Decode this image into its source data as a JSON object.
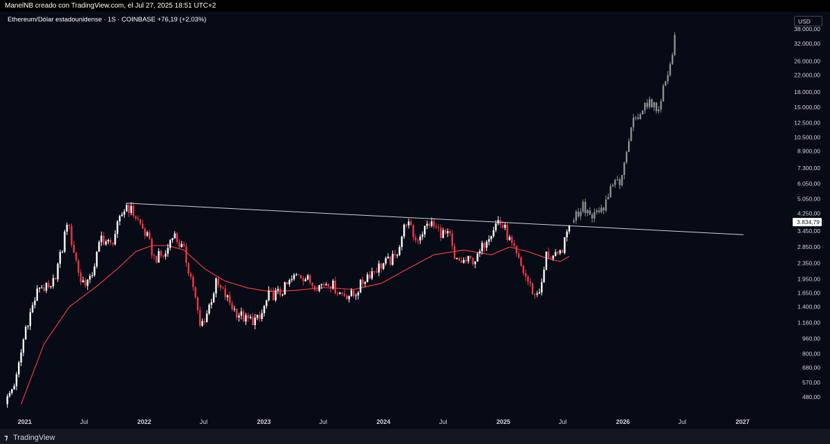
{
  "header": {
    "credit": "ManelNB creado con TradingView.com, el Jul 27, 2025 18:51 UTC+2"
  },
  "legend": {
    "symbol": "Ethereum/Dólar estadounidense · 1S · COINBASE",
    "change": "+76,19 (+2,03%)"
  },
  "price_scale": {
    "currency": "USD",
    "current_price_label": "3.834,79"
  },
  "footer": {
    "brand": "TradingView"
  },
  "colors": {
    "background": "#060b15",
    "up": "#ffffff",
    "down": "#f23645",
    "moving_average": "#f23645",
    "trendline": "#d1d4dc",
    "projection": "#8f8f8f"
  },
  "chart_data": {
    "type": "candlestick",
    "y_scale": "log",
    "y_range": [
      400,
      42000
    ],
    "x_range": [
      "2020-10-26",
      "2027-05-17"
    ],
    "y_ticks": [
      {
        "value": 38000,
        "label": "38.000,00"
      },
      {
        "value": 32000,
        "label": "32.000,00"
      },
      {
        "value": 26000,
        "label": "26.000,00"
      },
      {
        "value": 22000,
        "label": "22.000,00"
      },
      {
        "value": 18000,
        "label": "18.000,00"
      },
      {
        "value": 15000,
        "label": "15.000,00"
      },
      {
        "value": 12500,
        "label": "12.500,00"
      },
      {
        "value": 10500,
        "label": "10.500,00"
      },
      {
        "value": 8900,
        "label": "8.900,00"
      },
      {
        "value": 7300,
        "label": "7.300,00"
      },
      {
        "value": 6050,
        "label": "6.050,00"
      },
      {
        "value": 5050,
        "label": "5.050,00"
      },
      {
        "value": 4250,
        "label": "4.250,00"
      },
      {
        "value": 3450,
        "label": "3.450,00"
      },
      {
        "value": 2850,
        "label": "2.850,00"
      },
      {
        "value": 2350,
        "label": "2.350,00"
      },
      {
        "value": 1950,
        "label": "1.950,00"
      },
      {
        "value": 1650,
        "label": "1.650,00"
      },
      {
        "value": 1400,
        "label": "1.400,00"
      },
      {
        "value": 1160,
        "label": "1.160,00"
      },
      {
        "value": 960,
        "label": "960,00"
      },
      {
        "value": 800,
        "label": "800,00"
      },
      {
        "value": 680,
        "label": "680,00"
      },
      {
        "value": 570,
        "label": "570,00"
      },
      {
        "value": 480,
        "label": "480,00"
      }
    ],
    "x_ticks": [
      {
        "date": "2021-01-01",
        "label": "2021",
        "major": true
      },
      {
        "date": "2021-07-01",
        "label": "Jul",
        "major": false
      },
      {
        "date": "2022-01-01",
        "label": "2022",
        "major": true
      },
      {
        "date": "2022-07-01",
        "label": "Jul",
        "major": false
      },
      {
        "date": "2023-01-01",
        "label": "2023",
        "major": true
      },
      {
        "date": "2023-07-01",
        "label": "Jul",
        "major": false
      },
      {
        "date": "2024-01-01",
        "label": "2024",
        "major": true
      },
      {
        "date": "2024-07-01",
        "label": "Jul",
        "major": false
      },
      {
        "date": "2025-01-01",
        "label": "2025",
        "major": true
      },
      {
        "date": "2025-07-01",
        "label": "Jul",
        "major": false
      },
      {
        "date": "2026-01-01",
        "label": "2026",
        "major": true
      },
      {
        "date": "2026-07-01",
        "label": "Jul",
        "major": false
      },
      {
        "date": "2027-01-01",
        "label": "2027",
        "major": true
      }
    ],
    "price_path": [
      [
        "2020-11-02",
        440
      ],
      [
        "2020-12-07",
        600
      ],
      [
        "2021-01-04",
        1100
      ],
      [
        "2021-02-15",
        1800
      ],
      [
        "2021-03-22",
        1700
      ],
      [
        "2021-04-26",
        2800
      ],
      [
        "2021-05-10",
        3900
      ],
      [
        "2021-06-21",
        1900
      ],
      [
        "2021-07-19",
        1900
      ],
      [
        "2021-08-23",
        3200
      ],
      [
        "2021-09-20",
        2900
      ],
      [
        "2021-10-25",
        4200
      ],
      [
        "2021-11-08",
        4700
      ],
      [
        "2021-12-06",
        4100
      ],
      [
        "2022-01-10",
        3200
      ],
      [
        "2022-01-31",
        2500
      ],
      [
        "2022-03-07",
        2600
      ],
      [
        "2022-03-28",
        3400
      ],
      [
        "2022-05-02",
        2700
      ],
      [
        "2022-05-30",
        1800
      ],
      [
        "2022-06-20",
        1100
      ],
      [
        "2022-07-11",
        1300
      ],
      [
        "2022-08-08",
        1850
      ],
      [
        "2022-09-05",
        1600
      ],
      [
        "2022-10-03",
        1350
      ],
      [
        "2022-11-07",
        1200
      ],
      [
        "2022-12-19",
        1200
      ],
      [
        "2023-01-16",
        1600
      ],
      [
        "2023-02-20",
        1650
      ],
      [
        "2023-04-17",
        2100
      ],
      [
        "2023-05-29",
        1850
      ],
      [
        "2023-06-19",
        1800
      ],
      [
        "2023-07-17",
        1900
      ],
      [
        "2023-08-21",
        1650
      ],
      [
        "2023-10-02",
        1600
      ],
      [
        "2023-11-13",
        2050
      ],
      [
        "2023-12-25",
        2300
      ],
      [
        "2024-02-05",
        2500
      ],
      [
        "2024-03-11",
        3900
      ],
      [
        "2024-04-08",
        3100
      ],
      [
        "2024-05-20",
        3800
      ],
      [
        "2024-06-24",
        3400
      ],
      [
        "2024-07-22",
        3200
      ],
      [
        "2024-08-05",
        2400
      ],
      [
        "2024-09-09",
        2400
      ],
      [
        "2024-10-14",
        2500
      ],
      [
        "2024-11-11",
        3200
      ],
      [
        "2024-12-16",
        3900
      ],
      [
        "2025-01-06",
        3500
      ],
      [
        "2025-02-03",
        2700
      ],
      [
        "2025-03-10",
        2000
      ],
      [
        "2025-04-07",
        1600
      ],
      [
        "2025-04-28",
        1800
      ],
      [
        "2025-05-12",
        2600
      ],
      [
        "2025-06-16",
        2500
      ],
      [
        "2025-07-07",
        3000
      ],
      [
        "2025-07-21",
        3834.79
      ]
    ],
    "projection_path": [
      [
        "2025-08-04",
        4000
      ],
      [
        "2025-09-01",
        4600
      ],
      [
        "2025-09-29",
        4000
      ],
      [
        "2025-11-03",
        4500
      ],
      [
        "2025-12-01",
        6000
      ],
      [
        "2025-12-29",
        6300
      ],
      [
        "2026-01-26",
        12000
      ],
      [
        "2026-02-16",
        14000
      ],
      [
        "2026-03-16",
        16000
      ],
      [
        "2026-04-13",
        14500
      ],
      [
        "2026-05-11",
        20000
      ],
      [
        "2026-06-08",
        34000
      ]
    ],
    "moving_average": [
      [
        "2020-12-21",
        440
      ],
      [
        "2021-03-01",
        900
      ],
      [
        "2021-05-17",
        1400
      ],
      [
        "2021-08-02",
        1750
      ],
      [
        "2021-10-11",
        2200
      ],
      [
        "2021-12-06",
        2700
      ],
      [
        "2022-01-24",
        2900
      ],
      [
        "2022-03-14",
        2900
      ],
      [
        "2022-05-02",
        2750
      ],
      [
        "2022-07-04",
        2200
      ],
      [
        "2022-09-05",
        1900
      ],
      [
        "2022-11-14",
        1750
      ],
      [
        "2023-01-16",
        1680
      ],
      [
        "2023-04-03",
        1700
      ],
      [
        "2023-07-03",
        1760
      ],
      [
        "2023-10-02",
        1720
      ],
      [
        "2023-12-25",
        1850
      ],
      [
        "2024-03-04",
        2150
      ],
      [
        "2024-06-03",
        2600
      ],
      [
        "2024-09-02",
        2750
      ],
      [
        "2024-11-25",
        2600
      ],
      [
        "2025-01-20",
        2850
      ],
      [
        "2025-03-17",
        2700
      ],
      [
        "2025-05-12",
        2500
      ],
      [
        "2025-06-23",
        2400
      ],
      [
        "2025-07-21",
        2550
      ]
    ],
    "trendline": {
      "start": [
        "2021-11-08",
        4800
      ],
      "end": [
        "2027-01-04",
        3300
      ]
    },
    "projection_start": "2025-07-28",
    "candle_interval_days": 7
  }
}
